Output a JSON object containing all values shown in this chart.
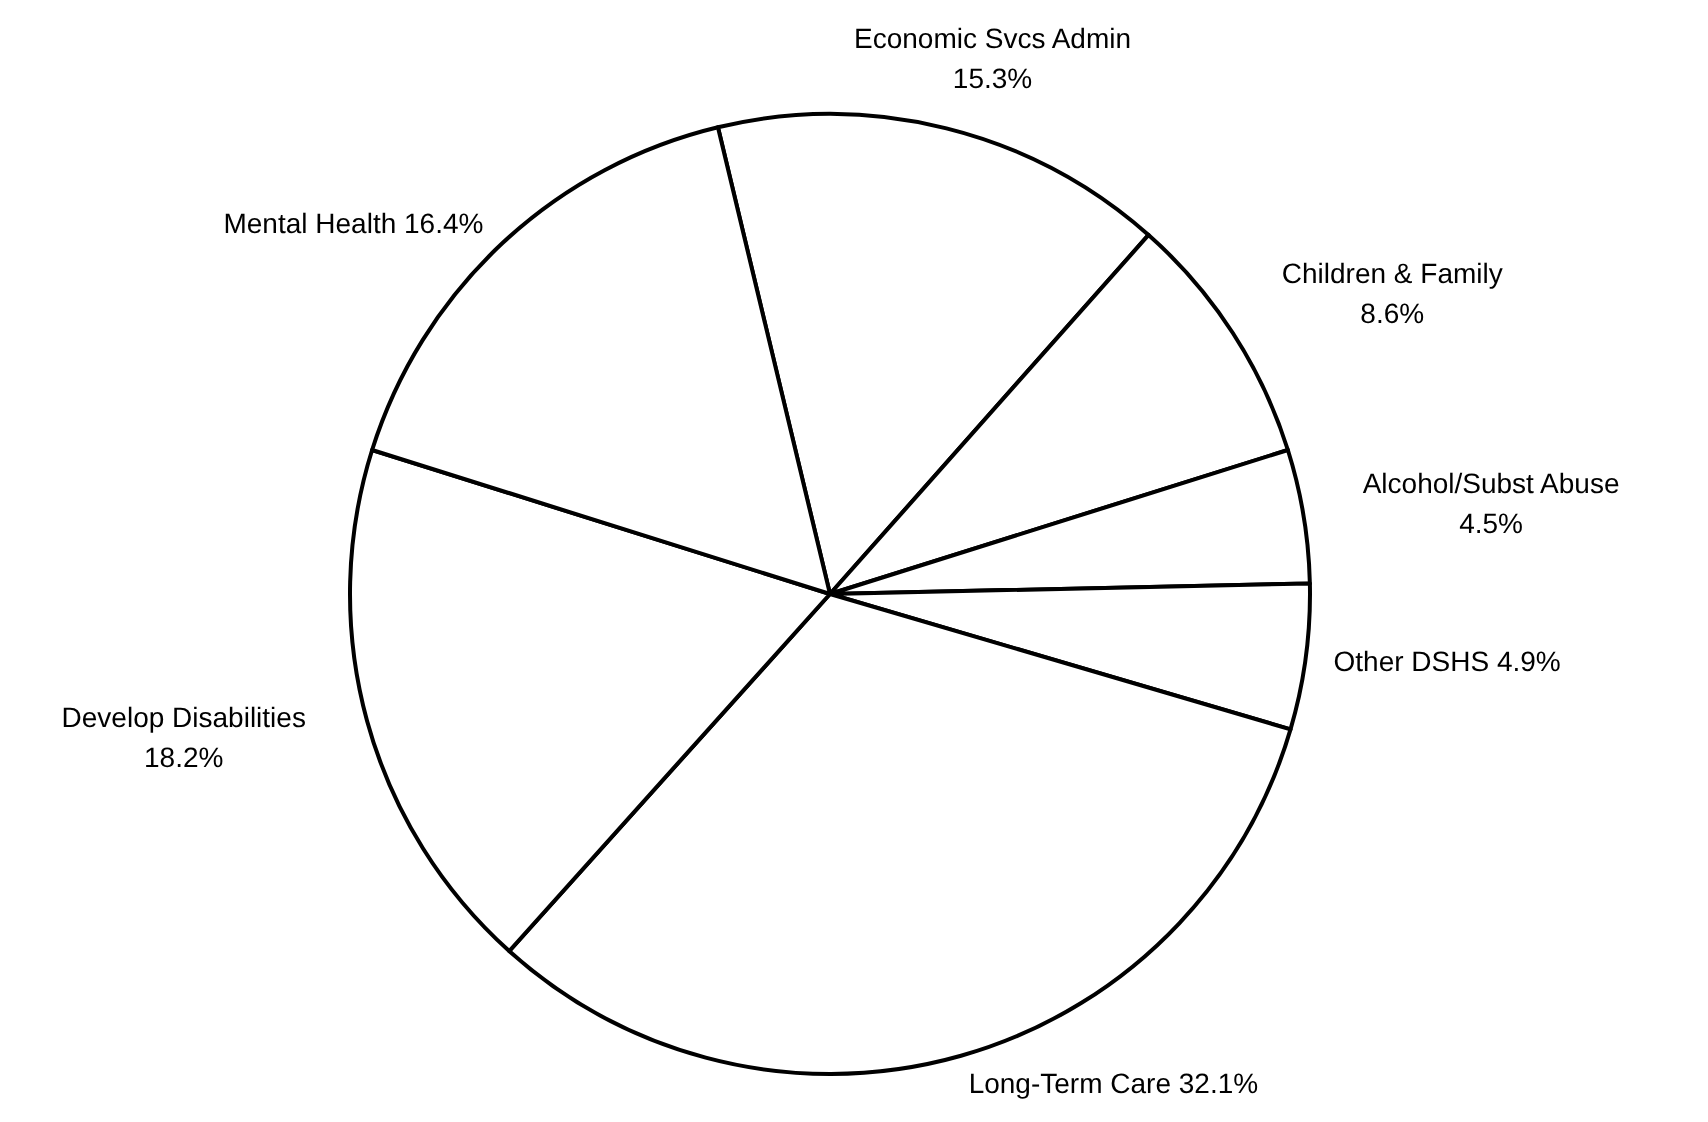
{
  "chart_data": {
    "type": "pie",
    "categories": [
      "Economic Svcs Admin",
      "Children & Family",
      "Alcohol/Subst Abuse",
      "Other DSHS",
      "Long-Term Care",
      "Develop Disabilities",
      "Mental Health"
    ],
    "values": [
      15.3,
      8.6,
      4.5,
      4.9,
      32.1,
      18.2,
      16.4
    ],
    "value_labels": [
      "15.3%",
      "8.6%",
      "4.5%",
      "4.9%",
      "32.1%",
      "18.2%",
      "16.4%"
    ],
    "colors": [
      "#ffffff",
      "#ffffff",
      "#ffffff",
      "#ffffff",
      "#ffffff",
      "#ffffff",
      "#ffffff"
    ]
  }
}
